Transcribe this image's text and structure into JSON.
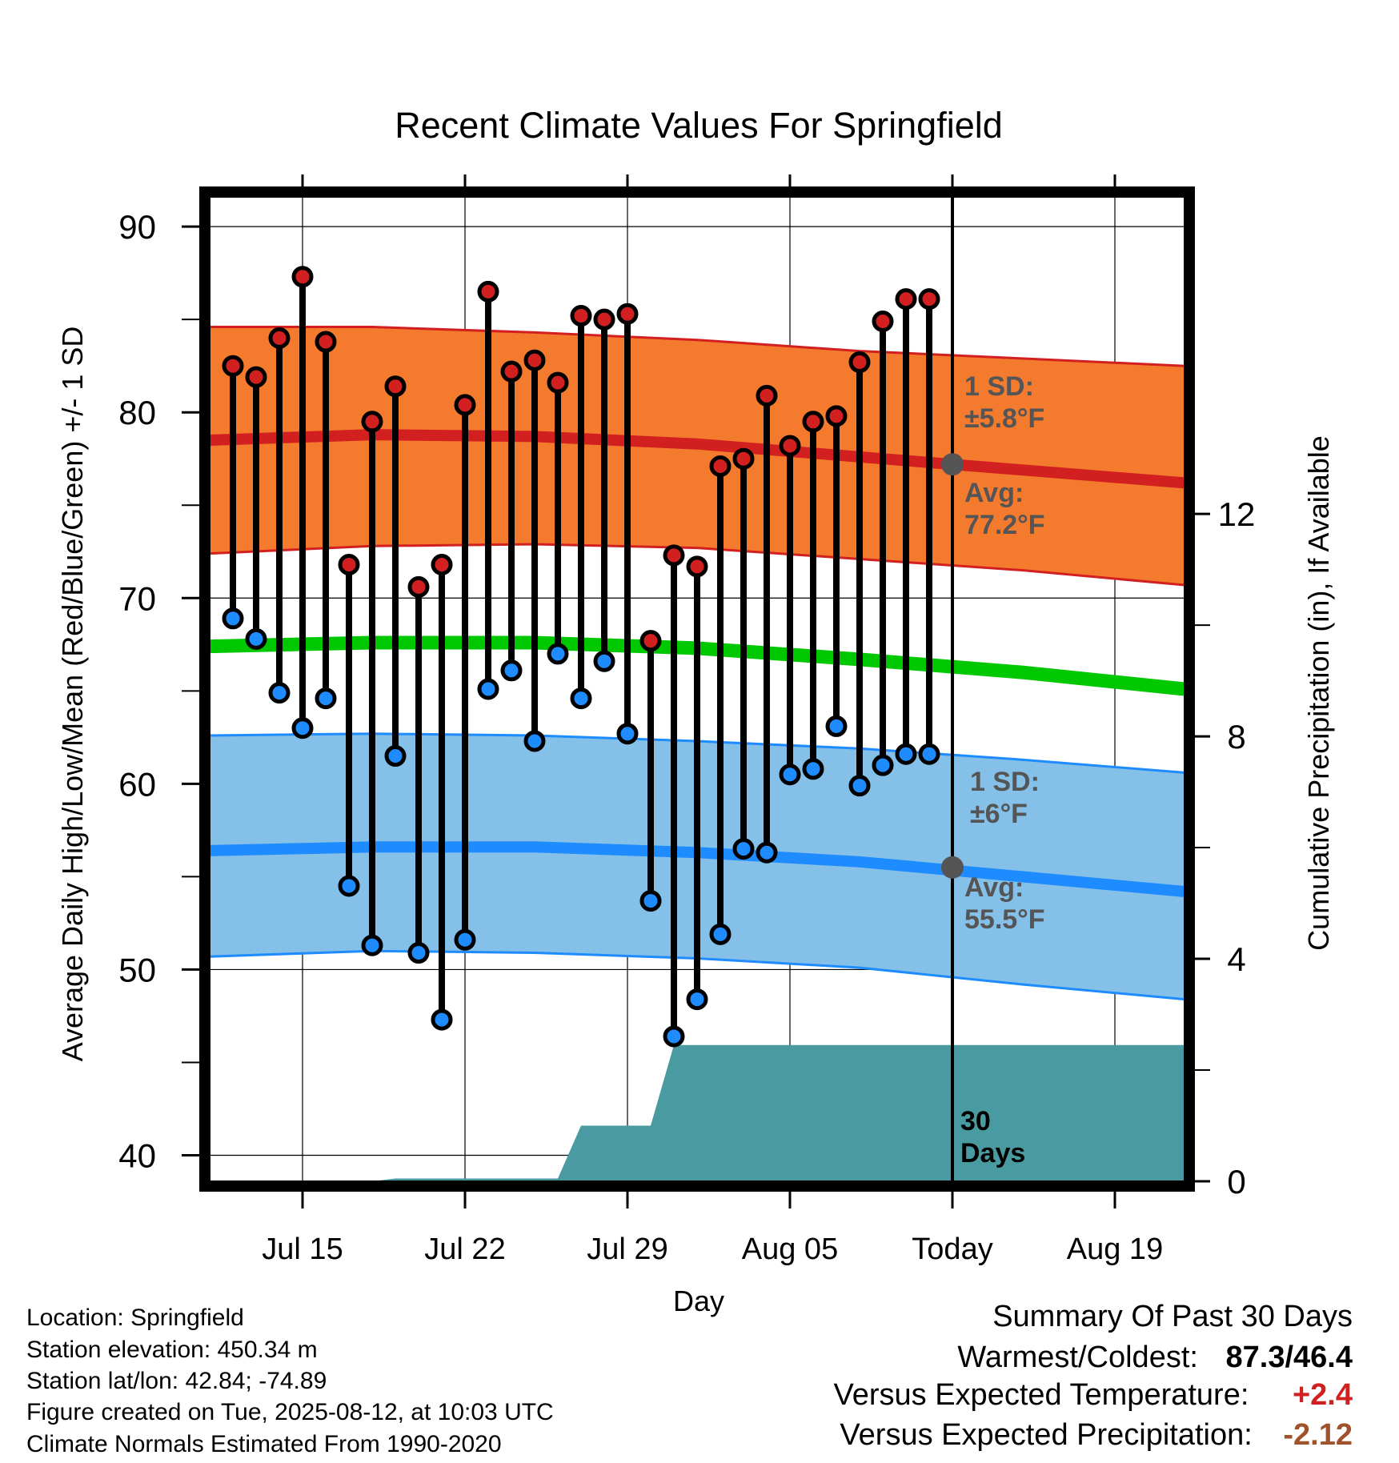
{
  "chart_data": {
    "type": "line",
    "title": "Recent Climate Values For Springfield",
    "xlabel": "Day",
    "ylabel": "Average Daily High/Low/Mean (Red/Blue/Green) +/- 1 SD",
    "y2label": "Cumulative Precipitation (in), If Available",
    "ylim": [
      38.6,
      91.6
    ],
    "y2lim": [
      0,
      17.7
    ],
    "xlim": [
      "2025-07-11",
      "2025-08-22"
    ],
    "yticks": [
      40,
      50,
      60,
      70,
      80,
      90
    ],
    "y2ticks": [
      0,
      4,
      8,
      12
    ],
    "xticks": [
      {
        "date": "2025-07-15",
        "label": "Jul 15"
      },
      {
        "date": "2025-07-22",
        "label": "Jul 22"
      },
      {
        "date": "2025-07-29",
        "label": "Jul 29"
      },
      {
        "date": "2025-08-05",
        "label": "Aug 05"
      },
      {
        "date": "2025-08-12",
        "label": "Today"
      },
      {
        "date": "2025-08-19",
        "label": "Aug 19"
      }
    ],
    "grid": true,
    "today": "2025-08-12",
    "dates": [
      "2025-07-12",
      "2025-07-13",
      "2025-07-14",
      "2025-07-15",
      "2025-07-16",
      "2025-07-17",
      "2025-07-18",
      "2025-07-19",
      "2025-07-20",
      "2025-07-21",
      "2025-07-22",
      "2025-07-23",
      "2025-07-24",
      "2025-07-25",
      "2025-07-26",
      "2025-07-27",
      "2025-07-28",
      "2025-07-29",
      "2025-07-30",
      "2025-07-31",
      "2025-08-01",
      "2025-08-02",
      "2025-08-03",
      "2025-08-04",
      "2025-08-05",
      "2025-08-06",
      "2025-08-07",
      "2025-08-08",
      "2025-08-09",
      "2025-08-10",
      "2025-08-11"
    ],
    "highs": [
      82.5,
      81.9,
      84.0,
      87.3,
      83.8,
      71.8,
      79.5,
      81.4,
      70.6,
      71.8,
      80.4,
      86.5,
      82.2,
      82.8,
      81.6,
      85.2,
      85.0,
      85.3,
      67.7,
      72.3,
      71.7,
      77.1,
      77.5,
      80.9,
      78.2,
      79.5,
      79.8,
      82.7,
      84.9,
      86.1,
      86.1
    ],
    "lows": [
      68.9,
      67.8,
      64.9,
      63.0,
      64.6,
      54.5,
      51.3,
      61.5,
      50.9,
      47.3,
      51.6,
      65.1,
      66.1,
      62.3,
      67.0,
      64.6,
      66.6,
      62.7,
      53.7,
      46.4,
      48.4,
      51.9,
      56.5,
      56.3,
      60.5,
      60.8,
      63.1,
      59.9,
      61.0,
      61.6,
      61.6
    ],
    "normals": {
      "dates": [
        "2025-07-11",
        "2025-07-18",
        "2025-07-25",
        "2025-08-01",
        "2025-08-08",
        "2025-08-15",
        "2025-08-22"
      ],
      "high_mean": [
        78.5,
        78.8,
        78.7,
        78.3,
        77.6,
        76.9,
        76.2
      ],
      "high_upper": [
        84.6,
        84.6,
        84.3,
        83.9,
        83.3,
        82.9,
        82.5
      ],
      "high_lower": [
        72.4,
        72.8,
        72.9,
        72.7,
        72.1,
        71.5,
        70.7
      ],
      "mean": [
        67.4,
        67.6,
        67.6,
        67.3,
        66.7,
        66.0,
        65.1
      ],
      "low_mean": [
        56.4,
        56.6,
        56.6,
        56.3,
        55.8,
        55.0,
        54.2
      ],
      "low_upper": [
        62.6,
        62.7,
        62.6,
        62.3,
        61.9,
        61.3,
        60.6
      ],
      "low_lower": [
        50.7,
        51.0,
        50.9,
        50.6,
        50.1,
        49.2,
        48.4
      ]
    },
    "today_markers": {
      "high_avg": 77.2,
      "low_avg": 55.5
    },
    "precip_cumulative": [
      {
        "date": "2025-07-11",
        "value": 0.0
      },
      {
        "date": "2025-07-18",
        "value": 0.0
      },
      {
        "date": "2025-07-19",
        "value": 0.05
      },
      {
        "date": "2025-07-26",
        "value": 0.05
      },
      {
        "date": "2025-07-27",
        "value": 1.0
      },
      {
        "date": "2025-07-30",
        "value": 1.0
      },
      {
        "date": "2025-07-31",
        "value": 2.45
      },
      {
        "date": "2025-08-22",
        "value": 2.45
      }
    ],
    "annotations": [
      {
        "id": "high_sd",
        "line1": "1 SD:",
        "line2": "±5.8°F"
      },
      {
        "id": "high_avg",
        "line1": "Avg:",
        "line2": "77.2°F"
      },
      {
        "id": "low_sd",
        "line1": "1 SD:",
        "line2": "±6°F"
      },
      {
        "id": "low_avg",
        "line1": "Avg:",
        "line2": "55.5°F"
      },
      {
        "id": "days",
        "line1": "30",
        "line2": "Days"
      }
    ],
    "colors": {
      "high_band": "#f47a2e",
      "high_edge": "#d22020",
      "high_mean": "#d22020",
      "mean": "#00c800",
      "low_band": "#84c0e8",
      "low_edge": "#1e8cff",
      "low_mean": "#1e8cff",
      "precip": "#4a9aa1",
      "high_dot": "#d22020",
      "low_dot": "#1e8cff",
      "marker": "#555555",
      "annotation": "#555555"
    }
  },
  "info": {
    "location": "Location: Springfield",
    "elevation": "Station elevation: 450.34 m",
    "latlon": "Station lat/lon: 42.84; -74.89",
    "created": "Figure created on Tue, 2025-08-12, at 10:03 UTC",
    "normals": "Climate Normals Estimated From 1990-2020"
  },
  "summary": {
    "title": "Summary Of Past 30 Days",
    "warm_label": "Warmest/Coldest:",
    "warm_value": "87.3/46.4",
    "temp_label": "Versus Expected Temperature:",
    "temp_value": "+2.4",
    "temp_color": "#d22020",
    "precip_label": "Versus Expected Precipitation:",
    "precip_value": "-2.12",
    "precip_color": "#a0522d"
  }
}
